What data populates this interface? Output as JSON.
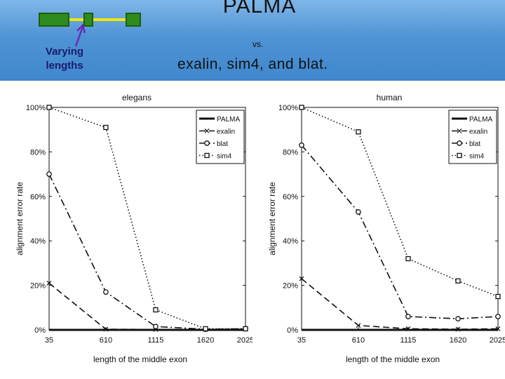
{
  "slide": {
    "title": "PALMA",
    "vs": "vs.",
    "subtitle": "exalin, sim4, and blat.",
    "note_line1": "Varying",
    "note_line2": "lengths"
  },
  "colors": {
    "exon_green": "#2e8b1e",
    "exon_border": "#1d5c10",
    "intron_yellow": "#f2e600",
    "arrow_purple": "#6a2bb5",
    "note_text": "#1a1a6e"
  },
  "chart_data": [
    {
      "type": "line",
      "title": "elegans",
      "xlabel": "length of the middle exon",
      "ylabel": "alignment error rate",
      "x": [
        35,
        610,
        1115,
        1620,
        2025
      ],
      "x_tick_labels": [
        "35",
        "610",
        "1115",
        "1620",
        "2025"
      ],
      "ylim": [
        0,
        100
      ],
      "y_ticks": [
        0,
        20,
        40,
        60,
        80,
        100
      ],
      "y_tick_labels": [
        "0%",
        "20%",
        "40%",
        "60%",
        "80%",
        "100%"
      ],
      "legend_position": "top-right",
      "series": [
        {
          "name": "PALMA",
          "style": "solid",
          "marker": "none",
          "values": [
            0,
            0,
            0,
            0,
            0
          ]
        },
        {
          "name": "exalin",
          "style": "dashed",
          "marker": "x",
          "values": [
            21,
            0.3,
            0.2,
            0.2,
            0.3
          ]
        },
        {
          "name": "blat",
          "style": "dashdot",
          "marker": "circle",
          "values": [
            70,
            17,
            1.5,
            0.3,
            0.5
          ]
        },
        {
          "name": "sim4",
          "style": "dotted",
          "marker": "square",
          "values": [
            100,
            91,
            9,
            0.5,
            0.5
          ]
        }
      ]
    },
    {
      "type": "line",
      "title": "human",
      "xlabel": "length of the middle exon",
      "ylabel": "alignment error rate",
      "x": [
        35,
        610,
        1115,
        1620,
        2025
      ],
      "x_tick_labels": [
        "35",
        "610",
        "1115",
        "1620",
        "2025"
      ],
      "ylim": [
        0,
        100
      ],
      "y_ticks": [
        0,
        20,
        40,
        60,
        80,
        100
      ],
      "y_tick_labels": [
        "0%",
        "20%",
        "40%",
        "60%",
        "80%",
        "100%"
      ],
      "legend_position": "top-right",
      "series": [
        {
          "name": "PALMA",
          "style": "solid",
          "marker": "none",
          "values": [
            0,
            0,
            0,
            0,
            0
          ]
        },
        {
          "name": "exalin",
          "style": "dashed",
          "marker": "x",
          "values": [
            23,
            2,
            0.5,
            0.3,
            0.5
          ]
        },
        {
          "name": "blat",
          "style": "dashdot",
          "marker": "circle",
          "values": [
            83,
            53,
            6,
            5,
            6
          ]
        },
        {
          "name": "sim4",
          "style": "dotted",
          "marker": "square",
          "values": [
            100,
            89,
            32,
            22,
            15
          ]
        }
      ]
    }
  ]
}
